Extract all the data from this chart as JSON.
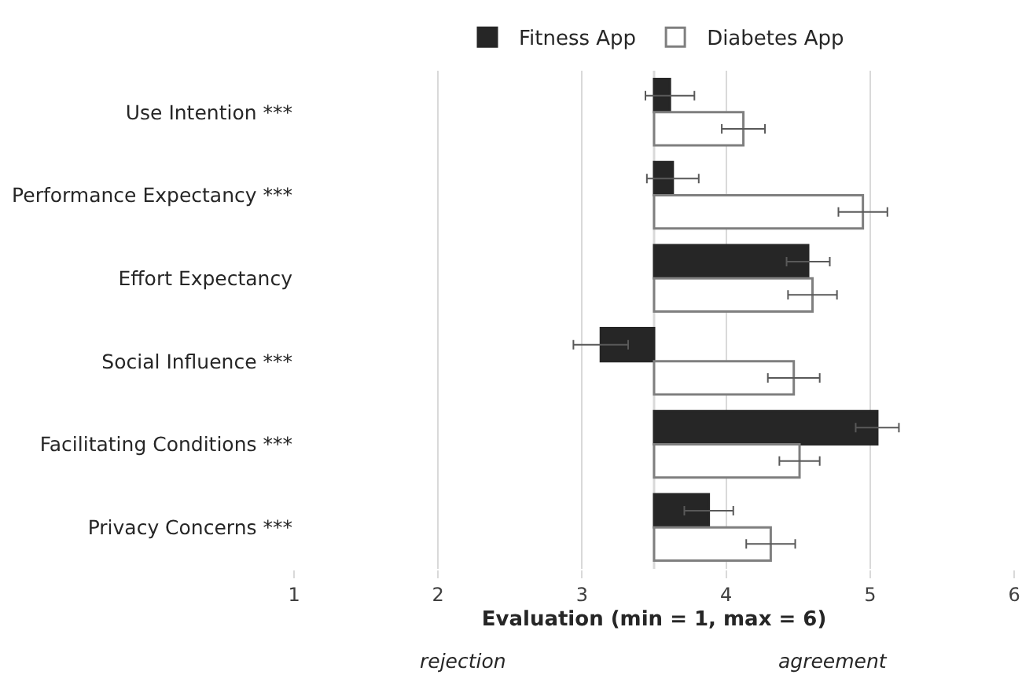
{
  "chart_data": {
    "type": "bar",
    "orientation": "horizontal",
    "categories": [
      "Use Intention ***",
      "Performance Expectancy ***",
      "Effort Expectancy",
      "Social Influence ***",
      "Facilitating Conditions ***",
      "Privacy Concerns ***"
    ],
    "series": [
      {
        "name": "Fitness App",
        "color": "#262626",
        "base": [
          3.5,
          3.5,
          3.5,
          3.5,
          3.5,
          3.5
        ],
        "values": [
          0.11,
          0.13,
          1.07,
          -0.37,
          1.55,
          0.38
        ],
        "errors": [
          0.17,
          0.18,
          0.15,
          0.19,
          0.15,
          0.17
        ]
      },
      {
        "name": "Diabetes App",
        "color": "#ffffff",
        "base": [
          3.5,
          3.5,
          3.5,
          3.5,
          3.5,
          3.5
        ],
        "values": [
          0.62,
          1.45,
          1.1,
          0.97,
          1.01,
          0.81
        ],
        "errors": [
          0.15,
          0.17,
          0.17,
          0.18,
          0.14,
          0.17
        ]
      }
    ],
    "xlabel": "Evaluation (min = 1, max = 6)",
    "xlim": [
      1,
      6
    ],
    "xticks": [
      1,
      2,
      3,
      4,
      5,
      6
    ],
    "ref_lines": [
      {
        "axis": "x",
        "value": 3.5,
        "color": "#d9d9d9"
      }
    ],
    "annotations": [
      "rejection",
      "agreement"
    ],
    "grid": "x",
    "legend": "top"
  }
}
